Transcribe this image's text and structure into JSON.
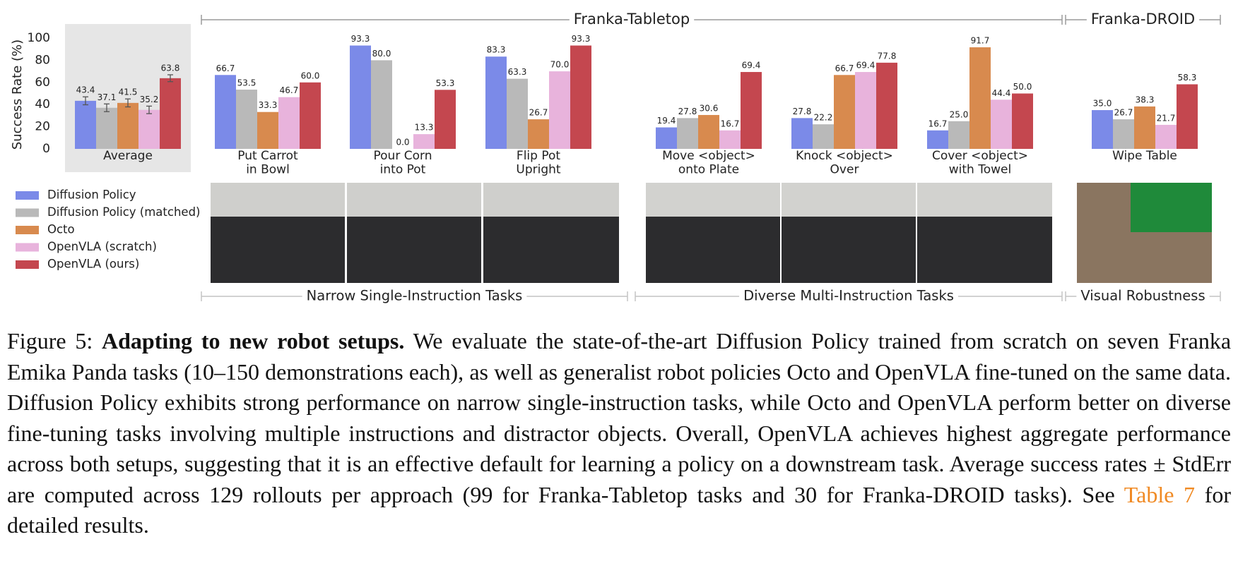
{
  "chart_data": {
    "type": "bar",
    "y_label": "Success Rate (%)",
    "ylim": [
      0,
      100
    ],
    "yticks": [
      0,
      20,
      40,
      60,
      80,
      100
    ],
    "categories": [
      "Average",
      "Put Carrot\nin Bowl",
      "Pour Corn\ninto Pot",
      "Flip Pot\nUpright",
      "Move <object>\nonto Plate",
      "Knock <object>\nOver",
      "Cover <object>\nwith Towel",
      "Wipe Table"
    ],
    "series": [
      {
        "name": "Diffusion Policy",
        "color": "#7b8ae8",
        "values": [
          43.4,
          66.7,
          93.3,
          83.3,
          19.4,
          27.8,
          16.7,
          35.0
        ],
        "value_labels": [
          "43.4",
          "66.7",
          "93.3",
          "83.3",
          "19.4",
          "27.8",
          "16.7",
          "35.0"
        ],
        "errors": [
          3.6,
          null,
          null,
          null,
          null,
          null,
          null,
          null
        ]
      },
      {
        "name": "Diffusion Policy (matched)",
        "color": "#b9b9b9",
        "values": [
          37.1,
          53.5,
          80.0,
          63.3,
          27.8,
          22.2,
          25.0,
          26.7
        ],
        "value_labels": [
          "37.1",
          "53.5",
          "80.0",
          "63.3",
          "27.8",
          "22.2",
          "25.0",
          "26.7"
        ],
        "errors": [
          3.5,
          null,
          null,
          null,
          null,
          null,
          null,
          null
        ]
      },
      {
        "name": "Octo",
        "color": "#d88a4e",
        "values": [
          41.5,
          33.3,
          0.0,
          26.7,
          30.6,
          66.7,
          91.7,
          38.3
        ],
        "value_labels": [
          "41.5",
          "33.3",
          "0.0",
          "26.7",
          "30.6",
          "66.7",
          "91.7",
          "38.3"
        ],
        "errors": [
          3.6,
          null,
          null,
          null,
          null,
          null,
          null,
          null
        ]
      },
      {
        "name": "OpenVLA (scratch)",
        "color": "#e8b3dc",
        "values": [
          35.2,
          46.7,
          13.3,
          70.0,
          16.7,
          69.4,
          44.4,
          21.7
        ],
        "value_labels": [
          "35.2",
          "46.7",
          "13.3",
          "70.0",
          "16.7",
          "69.4",
          "44.4",
          "21.7"
        ],
        "errors": [
          3.4,
          null,
          null,
          null,
          null,
          null,
          null,
          null
        ]
      },
      {
        "name": "OpenVLA (ours)",
        "color": "#c4474f",
        "values": [
          63.8,
          60.0,
          53.3,
          93.3,
          69.4,
          77.8,
          50.0,
          58.3
        ],
        "value_labels": [
          "63.8",
          "60.0",
          "53.3",
          "93.3",
          "69.4",
          "77.8",
          "50.0",
          "58.3"
        ],
        "errors": [
          3.1,
          null,
          null,
          null,
          null,
          null,
          null,
          null
        ]
      }
    ],
    "sections_top": [
      "Franka-Tabletop",
      "Franka-DROID"
    ],
    "sections_bottom": [
      "Narrow Single-Instruction Tasks",
      "Diverse Multi-Instruction Tasks",
      "Visual Robustness"
    ]
  },
  "caption": {
    "label": "Figure 5:",
    "title": "Adapting to new robot setups.",
    "text": "We evaluate the state-of-the-art Diffusion Policy trained from scratch on seven Franka Emika Panda tasks (10–150 demonstrations each), as well as generalist robot policies Octo and OpenVLA fine-tuned on the same data. Diffusion Policy exhibits strong performance on narrow single-instruction tasks, while Octo and OpenVLA perform better on diverse fine-tuning tasks involving multiple instructions and distractor objects. Overall, OpenVLA achieves highest aggregate performance across both setups, suggesting that it is an effective default for learning a policy on a downstream task. Average success rates ± StdErr are computed across 129 rollouts per approach (99 for Franka-Tabletop tasks and 30 for Franka-DROID tasks). See",
    "link": "Table 7",
    "text_after": "for detailed results."
  }
}
